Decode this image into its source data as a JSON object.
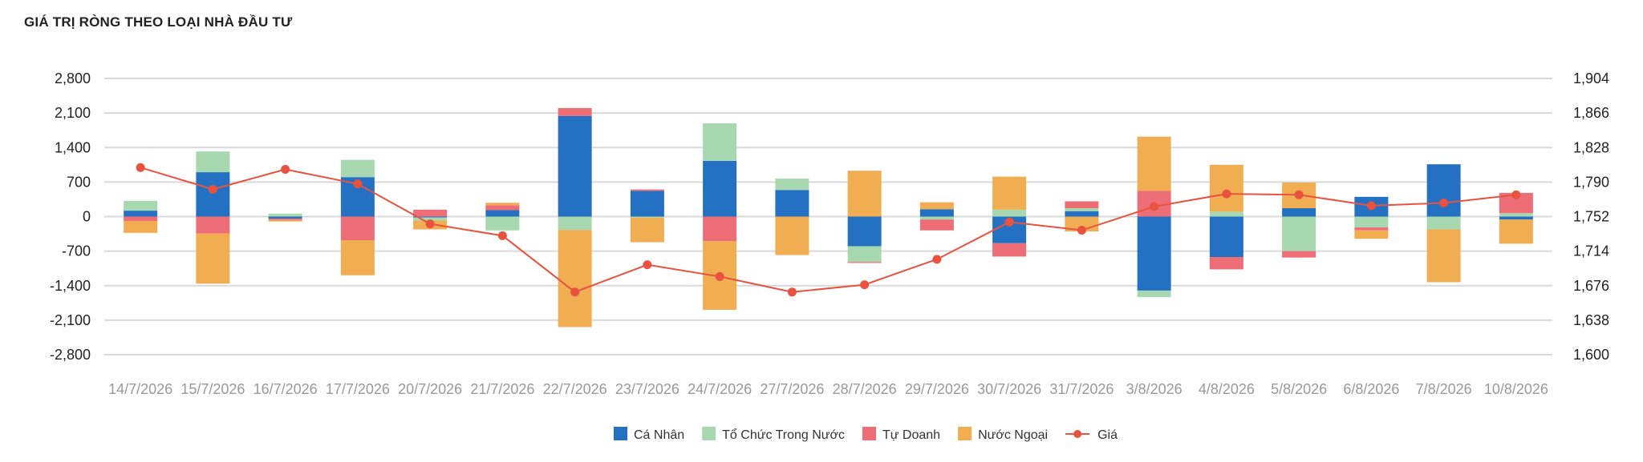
{
  "chart_data": {
    "type": "bar",
    "stacked": true,
    "title": "GIÁ TRỊ RÒNG THEO LOẠI NHÀ ĐẦU TƯ",
    "categories": [
      "14/7/2026",
      "15/7/2026",
      "16/7/2026",
      "17/7/2026",
      "20/7/2026",
      "21/7/2026",
      "22/7/2026",
      "23/7/2026",
      "24/7/2026",
      "27/7/2026",
      "28/7/2026",
      "29/7/2026",
      "30/7/2026",
      "31/7/2026",
      "3/8/2026",
      "4/8/2026",
      "5/8/2026",
      "6/8/2026",
      "7/8/2026",
      "10/8/2026"
    ],
    "ylim": [
      -2800,
      2800
    ],
    "yticks": [
      "2,800",
      "2,100",
      "1,400",
      "700",
      "0",
      "-700",
      "-1,400",
      "-2,100",
      "-2,800"
    ],
    "y2lim": [
      1600,
      1904
    ],
    "y2ticks": [
      "1,904",
      "1,866",
      "1,828",
      "1,790",
      "1,752",
      "1,714",
      "1,676",
      "1,638",
      "1,600"
    ],
    "grid": true,
    "legend_position": "bottom",
    "series": [
      {
        "name": "Cá Nhân",
        "color": "#2471c4",
        "axis": "left",
        "values": [
          120,
          900,
          -40,
          800,
          -20,
          130,
          2040,
          520,
          1130,
          540,
          -600,
          150,
          -540,
          110,
          -1500,
          -820,
          170,
          400,
          1060,
          -60
        ]
      },
      {
        "name": "Tổ Chức Trong Nước",
        "color": "#a8d8b0",
        "axis": "left",
        "values": [
          200,
          420,
          60,
          350,
          -60,
          -280,
          -270,
          -20,
          760,
          230,
          -320,
          -60,
          140,
          60,
          -130,
          100,
          -700,
          -220,
          -260,
          70
        ]
      },
      {
        "name": "Tự Doanh",
        "color": "#ee6e78",
        "axis": "left",
        "values": [
          -90,
          -340,
          -30,
          -480,
          140,
          100,
          160,
          30,
          -500,
          0,
          -20,
          -220,
          -270,
          140,
          520,
          -250,
          -130,
          -60,
          0,
          410
        ]
      },
      {
        "name": "Nước Ngoại",
        "color": "#f0ad52",
        "axis": "left",
        "values": [
          -240,
          -1020,
          -30,
          -710,
          -180,
          50,
          -1970,
          -500,
          -1390,
          -780,
          930,
          140,
          670,
          -300,
          1100,
          950,
          520,
          -170,
          -1070,
          -490
        ]
      },
      {
        "name": "Giá",
        "type": "line",
        "color": "#e8523f",
        "axis": "right",
        "values": [
          1806,
          1782,
          1804,
          1788,
          1744,
          1731,
          1669,
          1699,
          1686,
          1669,
          1677,
          1705,
          1746,
          1737,
          1763,
          1777,
          1776,
          1764,
          1767,
          1776
        ]
      }
    ]
  }
}
